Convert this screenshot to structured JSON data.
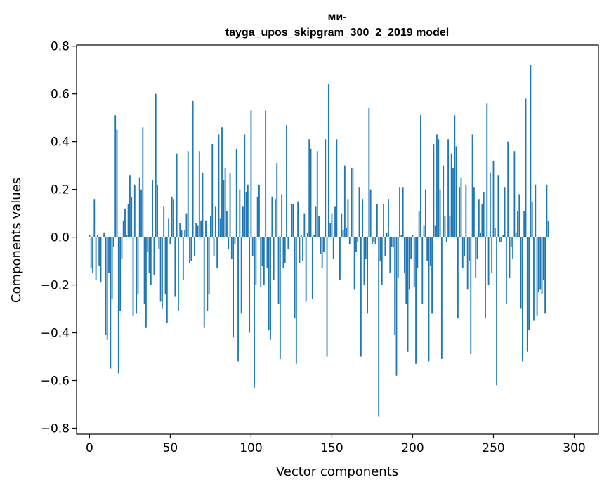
{
  "chart_data": {
    "type": "bar",
    "title_lines": [
      "ми-",
      "tayga_upos_skipgram_300_2_2019 model"
    ],
    "xlabel": "Vector components",
    "ylabel": "Components values",
    "xlim": [
      -8,
      315
    ],
    "ylim": [
      -0.825,
      0.805
    ],
    "xticks": [
      0,
      50,
      100,
      150,
      200,
      250,
      300
    ],
    "xtick_labels": [
      "0",
      "50",
      "100",
      "150",
      "200",
      "250",
      "300"
    ],
    "yticks": [
      0.8,
      0.6,
      0.4,
      0.2,
      0.0,
      -0.2,
      -0.4,
      -0.6,
      -0.8
    ],
    "ytick_labels": [
      "0.8",
      "0.6",
      "0.4",
      "0.2",
      "0.0",
      "−0.2",
      "−0.4",
      "−0.6",
      "−0.8"
    ],
    "grid": false,
    "bar_color": "#1f77b4",
    "series": [
      {
        "name": "components",
        "values": [
          0.01,
          -0.13,
          -0.15,
          0.16,
          -0.18,
          0.01,
          -0.12,
          -0.19,
          0.0,
          0.02,
          -0.41,
          -0.43,
          -0.15,
          -0.55,
          -0.26,
          -0.04,
          0.51,
          0.45,
          -0.57,
          -0.31,
          -0.09,
          0.07,
          0.12,
          0.01,
          0.14,
          0.26,
          0.17,
          -0.33,
          0.22,
          -0.32,
          -0.24,
          0.25,
          0.2,
          0.46,
          -0.28,
          -0.38,
          -0.06,
          -0.15,
          -0.2,
          0.24,
          -0.16,
          0.6,
          0.22,
          -0.05,
          -0.27,
          -0.3,
          0.13,
          -0.24,
          -0.36,
          0.08,
          -0.03,
          0.17,
          0.16,
          -0.25,
          0.35,
          -0.31,
          0.06,
          0.03,
          -0.18,
          0.03,
          0.1,
          0.36,
          -0.11,
          -0.1,
          0.57,
          -0.08,
          0.06,
          0.05,
          0.36,
          0.07,
          0.27,
          -0.38,
          0.07,
          -0.31,
          -0.24,
          0.09,
          0.39,
          -0.08,
          0.13,
          -0.13,
          0.43,
          0.08,
          0.46,
          0.24,
          0.29,
          0.11,
          -0.05,
          0.27,
          -0.09,
          -0.42,
          -0.03,
          0.37,
          -0.52,
          0.2,
          -0.32,
          0.13,
          0.43,
          0.19,
          0.22,
          -0.4,
          0.53,
          -0.08,
          -0.63,
          -0.2,
          0.17,
          0.22,
          -0.21,
          -0.12,
          -0.2,
          0.53,
          -0.13,
          -0.39,
          -0.43,
          0.17,
          -0.18,
          0.16,
          0.31,
          -0.28,
          -0.51,
          0.18,
          -0.13,
          -0.11,
          0.47,
          -0.05,
          0.0,
          0.14,
          0.14,
          -0.34,
          -0.53,
          0.15,
          -0.11,
          0.01,
          -0.1,
          0.1,
          -0.27,
          0.02,
          0.41,
          0.37,
          -0.26,
          0.01,
          0.13,
          0.36,
          0.09,
          -0.07,
          -0.13,
          -0.06,
          0.41,
          -0.5,
          0.64,
          0.06,
          0.1,
          -0.09,
          0.13,
          0.41,
          0.0,
          -0.18,
          0.1,
          0.03,
          0.3,
          0.04,
          0.16,
          -0.03,
          0.29,
          0.29,
          -0.22,
          -0.06,
          -0.02,
          0.21,
          -0.5,
          0.16,
          -0.2,
          -0.09,
          -0.32,
          0.54,
          0.2,
          -0.03,
          -0.02,
          -0.03,
          0.14,
          -0.75,
          -0.1,
          -0.2,
          0.14,
          -0.08,
          0.02,
          0.16,
          -0.15,
          -0.04,
          -0.04,
          -0.41,
          -0.58,
          -0.17,
          0.21,
          0.01,
          0.21,
          -0.15,
          -0.28,
          -0.48,
          -0.22,
          -0.09,
          0.01,
          -0.21,
          -0.53,
          -0.13,
          0.11,
          0.51,
          -0.28,
          0.05,
          0.2,
          -0.1,
          -0.52,
          -0.12,
          -0.32,
          0.39,
          0.05,
          0.43,
          0.41,
          0.2,
          -0.51,
          0.3,
          0.09,
          -0.02,
          0.41,
          0.09,
          0.35,
          0.29,
          0.51,
          0.38,
          -0.34,
          0.21,
          0.25,
          -0.13,
          -0.08,
          0.22,
          -0.22,
          -0.1,
          -0.49,
          0.43,
          0.21,
          -0.17,
          -0.09,
          0.16,
          0.02,
          0.14,
          0.19,
          -0.34,
          0.56,
          -0.2,
          0.27,
          -0.15,
          0.32,
          0.04,
          -0.62,
          0.26,
          -0.02,
          -0.02,
          0.01,
          0.21,
          -0.28,
          0.4,
          -0.17,
          -0.04,
          -0.09,
          0.36,
          0.02,
          0.11,
          0.18,
          -0.3,
          -0.52,
          0.11,
          0.58,
          -0.48,
          -0.39,
          0.72,
          0.15,
          -0.35,
          0.22,
          -0.33,
          -0.23,
          -0.22,
          -0.24,
          -0.18,
          -0.32,
          0.22,
          0.07
        ]
      }
    ]
  }
}
